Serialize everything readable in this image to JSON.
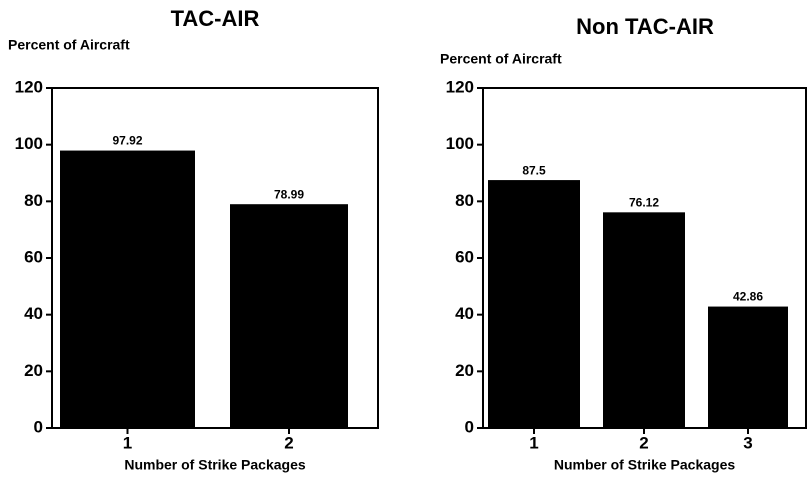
{
  "chart_data": [
    {
      "type": "bar",
      "title": "TAC-AIR",
      "y_label": "Percent of Aircraft",
      "x_label": "Number of Strike Packages",
      "categories": [
        "1",
        "2"
      ],
      "values": [
        97.92,
        78.99
      ],
      "color": "#000000",
      "ylim": [
        0,
        120
      ],
      "yticks": [
        0,
        20,
        40,
        60,
        80,
        100,
        120
      ]
    },
    {
      "type": "bar",
      "title": "Non TAC-AIR",
      "y_label": "Percent of Aircraft",
      "x_label": "Number of Strike Packages",
      "categories": [
        "1",
        "2",
        "3"
      ],
      "values": [
        87.5,
        76.12,
        42.86
      ],
      "color": "#000000",
      "ylim": [
        0,
        120
      ],
      "yticks": [
        0,
        20,
        40,
        60,
        80,
        100,
        120
      ]
    }
  ]
}
